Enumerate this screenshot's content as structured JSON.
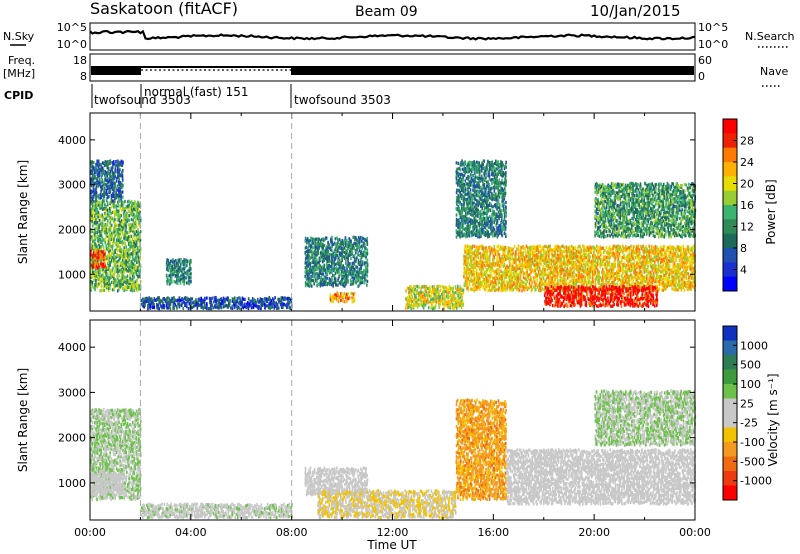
{
  "header": {
    "station": "Saskatoon (fitACF)",
    "beam": "Beam 09",
    "date": "10/Jan/2015"
  },
  "strips": {
    "nsky_label": "N.Sky",
    "nsky_ticks": [
      "10^5",
      "10^0"
    ],
    "nsearch_label": "N.Search",
    "nsearch_ticks": [
      "10^5",
      "10^0"
    ],
    "freq_label": "Freq.",
    "freq_unit": "[MHz]",
    "freq_ticks": [
      "18",
      "8"
    ],
    "nave_label": "Nave",
    "nave_ticks": [
      "60",
      "0"
    ],
    "cpid_label": "CPID",
    "cpid_segments": [
      {
        "label": "twofsound 3503",
        "start_hour": 0,
        "end_hour": 2.0
      },
      {
        "label": "normal (fast) 151",
        "start_hour": 2.0,
        "end_hour": 8.0
      },
      {
        "label": "twofsound 3503",
        "start_hour": 8.0,
        "end_hour": 24
      }
    ]
  },
  "power_panel": {
    "ylabel": "Slant Range [km]",
    "colorbar_label": "Power [dB]",
    "colorbar_ticks": [
      "28",
      "24",
      "20",
      "16",
      "12",
      "8",
      "4"
    ],
    "colorbar_colors": [
      "#ff0000",
      "#ee2200",
      "#ff7a00",
      "#ffb000",
      "#e6dc00",
      "#9acd32",
      "#3cb371",
      "#2e8b57",
      "#1e6a5a",
      "#2050b0",
      "#1a2fd0",
      "#0000ff"
    ]
  },
  "velocity_panel": {
    "ylabel": "Slant Range [km]",
    "colorbar_label": "Velocity [m s⁻¹]",
    "colorbar_ticks": [
      "1000",
      "500",
      "100",
      "25",
      "-25",
      "-100",
      "-500",
      "-1000"
    ],
    "colorbar_colors": [
      "#1030c0",
      "#2a6aa8",
      "#2e7d52",
      "#3d9a3d",
      "#6cc24a",
      "#c8c8c8",
      "#c8c8c8",
      "#f2c200",
      "#f59a20",
      "#f06a10",
      "#ee3a10",
      "#ff0000"
    ]
  },
  "xaxis": {
    "label": "Time UT",
    "ticks": [
      "00:00",
      "04:00",
      "08:00",
      "12:00",
      "16:00",
      "20:00",
      "00:00"
    ]
  },
  "chart_data": [
    {
      "type": "heatmap",
      "title": "",
      "xlabel": "Time UT",
      "ylabel": "Slant Range [km]",
      "x_unit": "hour UT",
      "xlim": [
        0,
        24
      ],
      "ylim": [
        180,
        4600
      ],
      "yticks": [
        1000,
        2000,
        3000,
        4000
      ],
      "colorbar": {
        "label": "Power [dB]",
        "range": [
          0,
          30
        ]
      },
      "regions": [
        {
          "t0": 0.0,
          "t1": 2.0,
          "r0": 600,
          "r1": 2600,
          "value": 14
        },
        {
          "t0": 0.0,
          "t1": 0.6,
          "r0": 1100,
          "r1": 1500,
          "value": 26
        },
        {
          "t0": 0.0,
          "t1": 1.3,
          "r0": 2600,
          "r1": 3500,
          "value": 8
        },
        {
          "t0": 2.0,
          "t1": 8.0,
          "r0": 200,
          "r1": 450,
          "value": 6
        },
        {
          "t0": 3.0,
          "t1": 4.0,
          "r0": 750,
          "r1": 1300,
          "value": 10
        },
        {
          "t0": 8.5,
          "t1": 11.0,
          "r0": 700,
          "r1": 1800,
          "value": 10
        },
        {
          "t0": 9.5,
          "t1": 10.5,
          "r0": 350,
          "r1": 550,
          "value": 22
        },
        {
          "t0": 12.5,
          "t1": 14.8,
          "r0": 200,
          "r1": 700,
          "value": 18
        },
        {
          "t0": 14.8,
          "t1": 24.0,
          "r0": 600,
          "r1": 1600,
          "value": 20
        },
        {
          "t0": 18.0,
          "t1": 22.5,
          "r0": 250,
          "r1": 700,
          "value": 28
        },
        {
          "t0": 14.5,
          "t1": 16.5,
          "r0": 1800,
          "r1": 3500,
          "value": 10
        },
        {
          "t0": 20.0,
          "t1": 24.0,
          "r0": 1800,
          "r1": 3000,
          "value": 12
        }
      ]
    },
    {
      "type": "heatmap",
      "title": "",
      "xlabel": "Time UT",
      "ylabel": "Slant Range [km]",
      "x_unit": "hour UT",
      "xlim": [
        0,
        24
      ],
      "ylim": [
        180,
        4600
      ],
      "yticks": [
        1000,
        2000,
        3000,
        4000
      ],
      "colorbar": {
        "label": "Velocity [m s⁻¹]",
        "range": [
          -1000,
          1000
        ]
      },
      "regions": [
        {
          "t0": 0.0,
          "t1": 2.0,
          "r0": 600,
          "r1": 2600,
          "value": 150
        },
        {
          "t0": 0.0,
          "t1": 1.3,
          "r0": 700,
          "r1": 1200,
          "value": 0
        },
        {
          "t0": 2.0,
          "t1": 8.0,
          "r0": 200,
          "r1": 500,
          "value": 80
        },
        {
          "t0": 8.5,
          "t1": 11.0,
          "r0": 700,
          "r1": 1300,
          "value": 0
        },
        {
          "t0": 9.0,
          "t1": 14.5,
          "r0": 200,
          "r1": 800,
          "value": -150
        },
        {
          "t0": 14.5,
          "t1": 16.5,
          "r0": 600,
          "r1": 2800,
          "value": -400
        },
        {
          "t0": 16.5,
          "t1": 24.0,
          "r0": 500,
          "r1": 1700,
          "value": 0
        },
        {
          "t0": 20.0,
          "t1": 24.0,
          "r0": 1800,
          "r1": 3000,
          "value": 150
        }
      ]
    }
  ]
}
